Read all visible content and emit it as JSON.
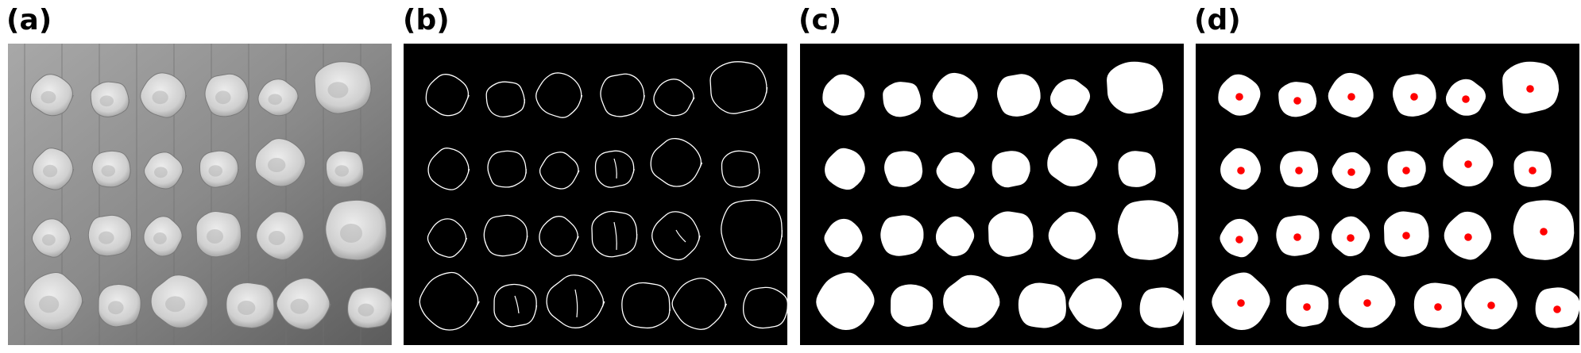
{
  "figure": {
    "panels": [
      {
        "id": "a",
        "label": "(a)",
        "content": "grayscale-coins-photo"
      },
      {
        "id": "b",
        "label": "(b)",
        "content": "edge-contours"
      },
      {
        "id": "c",
        "label": "(c)",
        "content": "binary-mask"
      },
      {
        "id": "d",
        "label": "(d)",
        "content": "centroids-marked"
      }
    ],
    "colors": {
      "background_dark": "#000000",
      "foreground_white": "#ffffff",
      "centroid_marker": "#ff0000",
      "coin_gray": "#cfcfcf",
      "photo_background": "#8a8a8a"
    },
    "coin_rows": 4,
    "coin_columns": 6
  }
}
